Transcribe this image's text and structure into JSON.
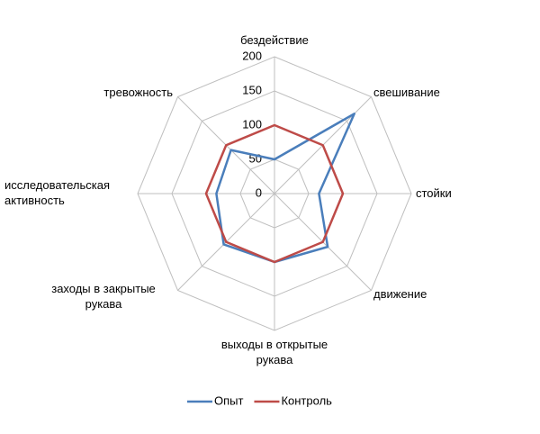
{
  "chart_data": {
    "type": "radar",
    "categories": [
      "бездействие",
      "свешивание",
      "стойки",
      "движение",
      "выходы в открытые рукава",
      "заходы в закрытые рукава",
      "исследовательская активность",
      "тревожность"
    ],
    "series": [
      {
        "name": "Опыт",
        "color": "#4a7ebb",
        "values": [
          50,
          165,
          65,
          110,
          100,
          105,
          85,
          90
        ]
      },
      {
        "name": "Контроль",
        "color": "#be4b48",
        "values": [
          100,
          100,
          100,
          100,
          100,
          100,
          100,
          100
        ]
      }
    ],
    "rlim": [
      0,
      200
    ],
    "rticks": [
      0,
      50,
      100,
      150,
      200
    ],
    "grid": true,
    "legend": "bottom"
  }
}
